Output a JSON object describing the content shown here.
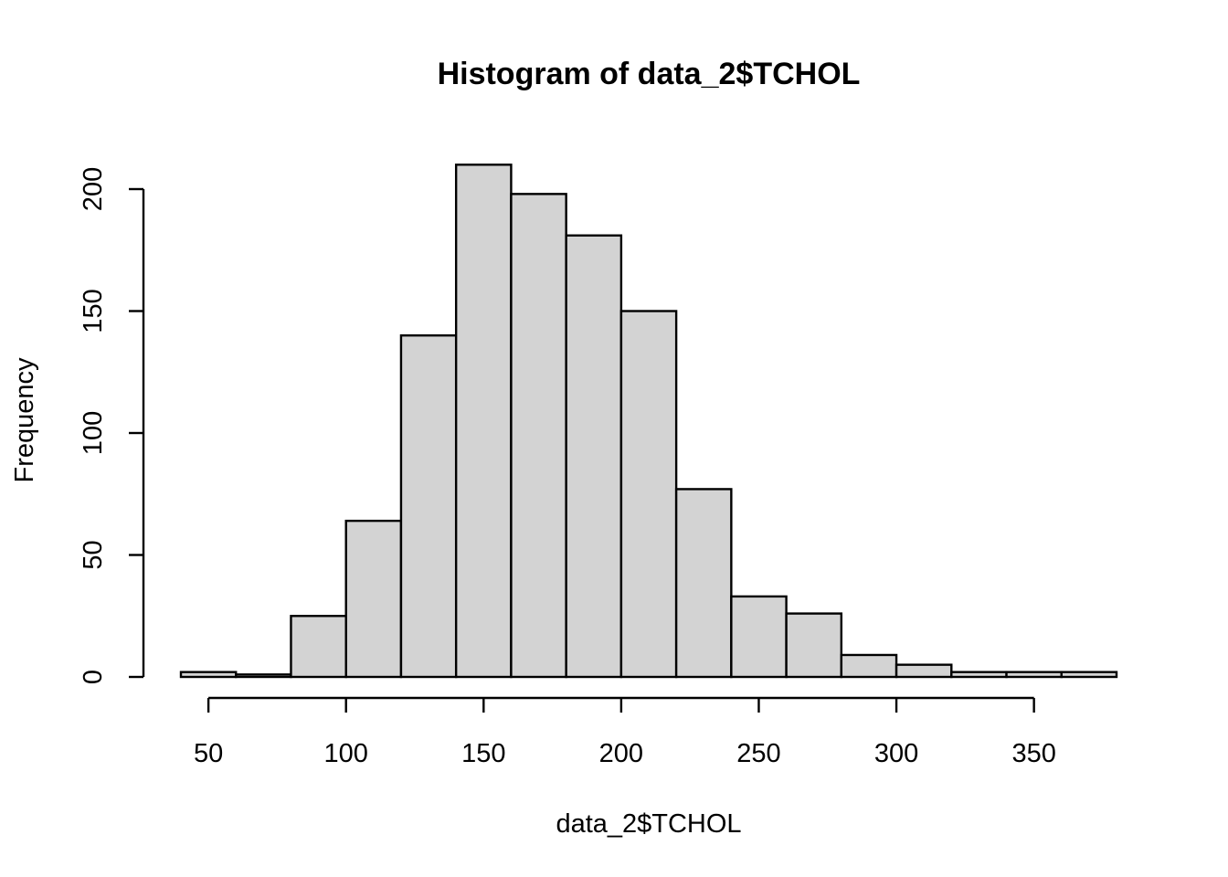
{
  "chart_data": {
    "type": "bar",
    "title": "Histogram of data_2$TCHOL",
    "xlabel": "data_2$TCHOL",
    "ylabel": "Frequency",
    "bin_edges": [
      40,
      60,
      80,
      100,
      120,
      140,
      160,
      180,
      200,
      220,
      240,
      260,
      280,
      300,
      320,
      340,
      360,
      380
    ],
    "values": [
      2,
      1,
      25,
      64,
      140,
      210,
      198,
      181,
      150,
      77,
      33,
      26,
      9,
      5,
      2,
      2,
      2
    ],
    "x_ticks": [
      50,
      100,
      150,
      200,
      250,
      300,
      350
    ],
    "y_ticks": [
      0,
      50,
      100,
      150,
      200
    ],
    "xlim": [
      40,
      380
    ],
    "ylim": [
      0,
      210
    ],
    "grid": false,
    "colors": {
      "bar_fill": "#d3d3d3",
      "bar_stroke": "#000000"
    }
  }
}
